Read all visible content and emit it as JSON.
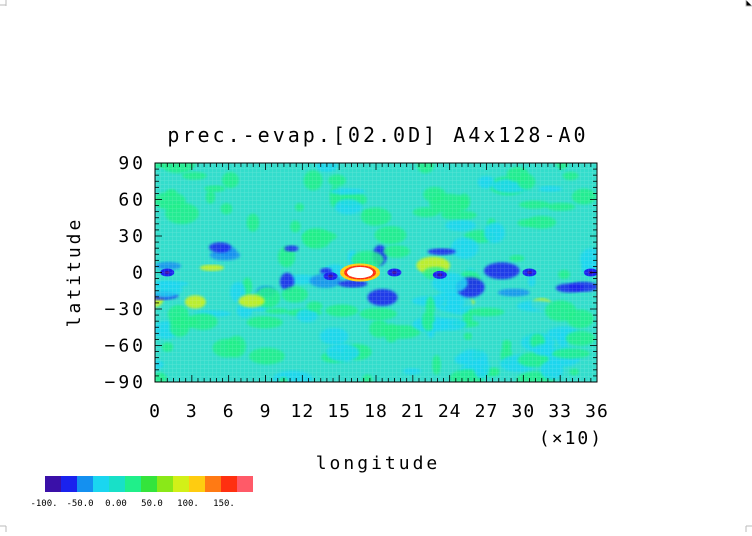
{
  "chart_data": {
    "type": "heatmap",
    "title": "prec.-evap.[02.0D] A4x128-A0",
    "xlabel": "longitude",
    "ylabel": "latitude",
    "x_multiplier_label": "(×10)",
    "xlim": [
      0,
      36
    ],
    "ylim": [
      -90,
      90
    ],
    "x_ticks": [
      "0",
      "3",
      "6",
      "9",
      "12",
      "15",
      "18",
      "21",
      "24",
      "27",
      "30",
      "33",
      "36"
    ],
    "y_ticks": [
      "90",
      "60",
      "30",
      "0",
      "−30",
      "−60",
      "−90"
    ],
    "y_tick_values": [
      90,
      60,
      30,
      0,
      -30,
      -60,
      -90
    ],
    "background_level_color": "#33ddcc",
    "colorbar": {
      "colors": [
        "#3a10a8",
        "#1a22ee",
        "#1490f0",
        "#1ad6f0",
        "#18e0c8",
        "#20ef8a",
        "#34e43c",
        "#8ae818",
        "#d2f018",
        "#ffcc10",
        "#ff7a14",
        "#ff3010",
        "#ff5a68"
      ],
      "labels": [
        "-100.",
        "-50.0",
        "0.00",
        "50.0",
        "100.",
        "150."
      ]
    },
    "features": [
      {
        "lon": 16.7,
        "lat": 0,
        "level": "max",
        "color": "#ffffff",
        "outline": "#ff3010"
      },
      {
        "lon": 1.0,
        "lat": 0,
        "level": "min",
        "color": "#1a22ee"
      },
      {
        "lon": 14.3,
        "lat": -3,
        "level": "min",
        "color": "#1a22ee"
      },
      {
        "lon": 19.5,
        "lat": 0,
        "level": "min",
        "color": "#1a22ee"
      },
      {
        "lon": 23.2,
        "lat": -2,
        "level": "min",
        "color": "#1a22ee"
      },
      {
        "lon": 30.5,
        "lat": 0,
        "level": "min",
        "color": "#1a22ee"
      },
      {
        "lon": 35.5,
        "lat": 0,
        "level": "min",
        "color": "#1a22ee"
      }
    ]
  }
}
